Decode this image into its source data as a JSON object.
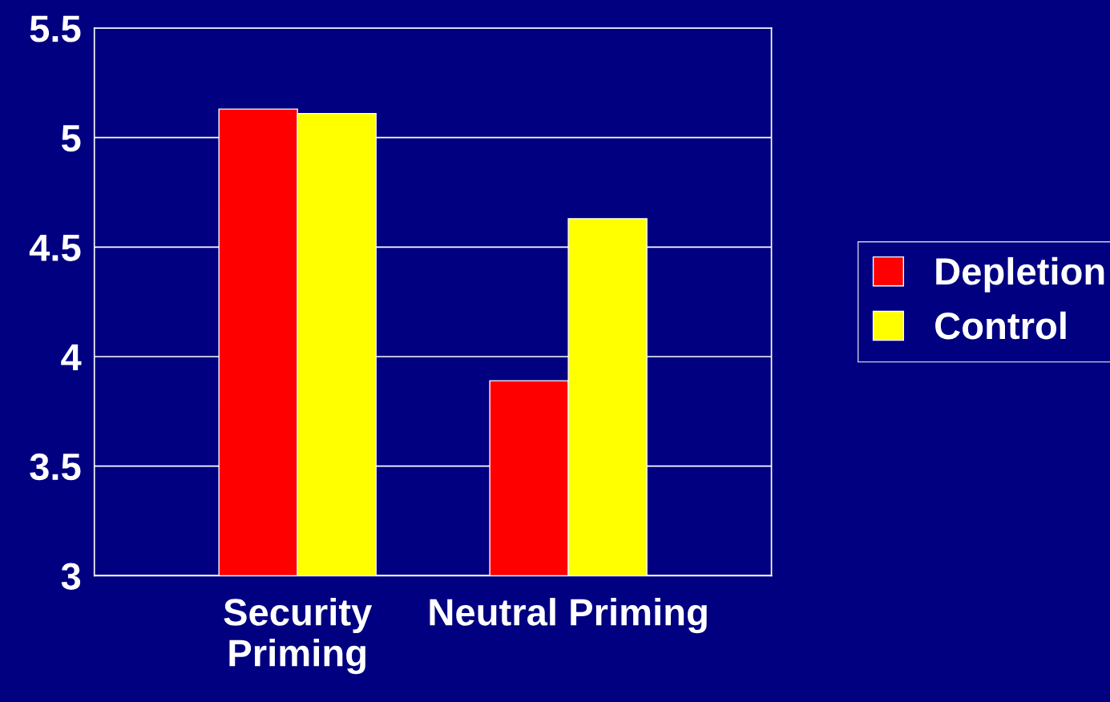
{
  "chart_data": {
    "type": "bar",
    "categories": [
      "Security\nPriming",
      "Neutral Priming"
    ],
    "series": [
      {
        "name": "Depletion",
        "color": "#ff0000",
        "values": [
          5.13,
          3.89
        ]
      },
      {
        "name": "Control",
        "color": "#ffff00",
        "values": [
          5.11,
          4.63
        ]
      }
    ],
    "ylim": [
      3,
      5.5
    ],
    "yticks": [
      3,
      3.5,
      4,
      4.5,
      5,
      5.5
    ],
    "grid": "y",
    "legend": "right"
  }
}
